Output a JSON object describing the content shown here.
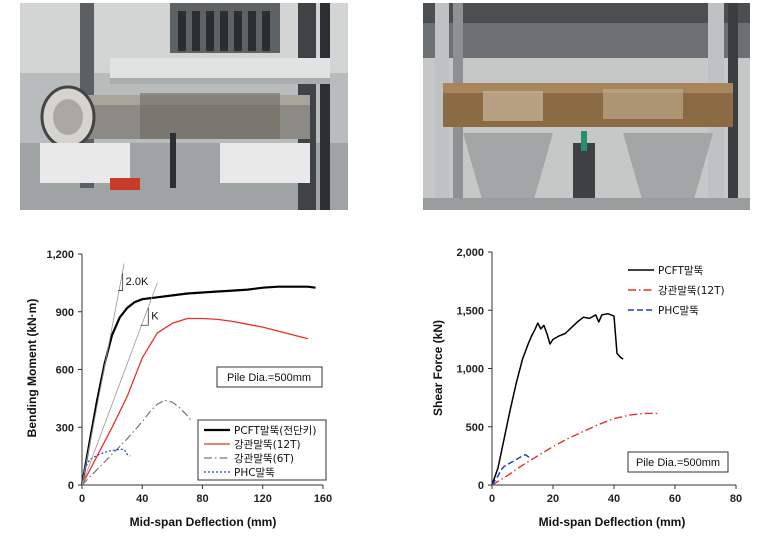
{
  "photos": [
    {
      "description_icon": "test-photo-left"
    },
    {
      "description_icon": "test-photo-right"
    }
  ],
  "chart_data": [
    {
      "type": "line",
      "xlabel": "Mid-span Deflection (mm)",
      "ylabel": "Bending Moment (kN·m)",
      "xlim": [
        0,
        160
      ],
      "ylim": [
        0,
        1200
      ],
      "xticks": [
        "0",
        "40",
        "80",
        "120",
        "160"
      ],
      "yticks": [
        "0",
        "300",
        "600",
        "900",
        "1,200"
      ],
      "grid": false,
      "legend_position": "bottom-right",
      "annotation_box": "Pile Dia.=500mm",
      "slope_labels": [
        "2.0K",
        "K"
      ],
      "series": [
        {
          "name": "PCFT말뚝(전단키)",
          "color": "#000000",
          "style": "solid",
          "width": 2.2,
          "x": [
            0,
            5,
            10,
            15,
            20,
            25,
            30,
            35,
            40,
            50,
            60,
            70,
            80,
            90,
            100,
            110,
            120,
            130,
            140,
            150,
            155
          ],
          "y": [
            0,
            220,
            440,
            630,
            780,
            870,
            920,
            950,
            965,
            975,
            985,
            995,
            1000,
            1005,
            1010,
            1015,
            1025,
            1030,
            1030,
            1030,
            1025
          ]
        },
        {
          "name": "강관말뚝(12T)",
          "color": "#e8312b",
          "style": "solid",
          "width": 1.3,
          "x": [
            0,
            10,
            20,
            30,
            35,
            40,
            50,
            60,
            70,
            80,
            90,
            100,
            110,
            120,
            130,
            140,
            150
          ],
          "y": [
            0,
            150,
            300,
            460,
            560,
            660,
            790,
            840,
            865,
            865,
            860,
            850,
            835,
            820,
            800,
            780,
            760
          ]
        },
        {
          "name": "강관말뚝(6T)",
          "color": "#777777",
          "style": "dashdot",
          "width": 1.2,
          "x": [
            0,
            10,
            20,
            30,
            40,
            45,
            50,
            55,
            60,
            65,
            70,
            72
          ],
          "y": [
            0,
            80,
            160,
            240,
            330,
            380,
            420,
            440,
            430,
            400,
            360,
            340
          ]
        },
        {
          "name": "PHC말뚝",
          "color": "#1f3fcf",
          "style": "dotted",
          "width": 1.2,
          "x": [
            0,
            2,
            5,
            10,
            15,
            20,
            25,
            28,
            30,
            32
          ],
          "y": [
            0,
            90,
            130,
            155,
            170,
            180,
            185,
            185,
            160,
            150
          ]
        }
      ]
    },
    {
      "type": "line",
      "xlabel": "Mid-span Deflection (mm)",
      "ylabel": "Shear Force (kN)",
      "xlim": [
        0,
        80
      ],
      "ylim": [
        0,
        2000
      ],
      "xticks": [
        "0",
        "20",
        "40",
        "60",
        "80"
      ],
      "yticks": [
        "0",
        "500",
        "1,000",
        "1,500",
        "2,000"
      ],
      "grid": false,
      "legend_position": "top-right",
      "annotation_box": "Pile Dia.=500mm",
      "series": [
        {
          "name": "PCFT말뚝",
          "color": "#000000",
          "style": "solid",
          "width": 1.5,
          "x": [
            0,
            2,
            4,
            6,
            8,
            10,
            12,
            13,
            14,
            15,
            16,
            17,
            18,
            19,
            20,
            22,
            24,
            26,
            28,
            30,
            32,
            34,
            35,
            36,
            38,
            40,
            41,
            42,
            43
          ],
          "y": [
            0,
            150,
            400,
            650,
            880,
            1080,
            1220,
            1280,
            1330,
            1390,
            1340,
            1370,
            1300,
            1210,
            1250,
            1280,
            1300,
            1350,
            1400,
            1440,
            1430,
            1460,
            1400,
            1460,
            1470,
            1450,
            1130,
            1100,
            1080
          ]
        },
        {
          "name": "강관말뚝(12T)",
          "color": "#e8312b",
          "style": "dashdot",
          "width": 1.4,
          "x": [
            0,
            5,
            10,
            15,
            20,
            25,
            30,
            35,
            40,
            45,
            50,
            55
          ],
          "y": [
            0,
            80,
            170,
            250,
            330,
            400,
            460,
            520,
            570,
            600,
            615,
            615
          ]
        },
        {
          "name": "PHC말뚝",
          "color": "#1f3fcf",
          "style": "dashed",
          "width": 1.5,
          "x": [
            0,
            2,
            3,
            4,
            6,
            8,
            10,
            11,
            12,
            13
          ],
          "y": [
            0,
            80,
            130,
            160,
            190,
            220,
            250,
            260,
            240,
            230
          ]
        }
      ]
    }
  ]
}
